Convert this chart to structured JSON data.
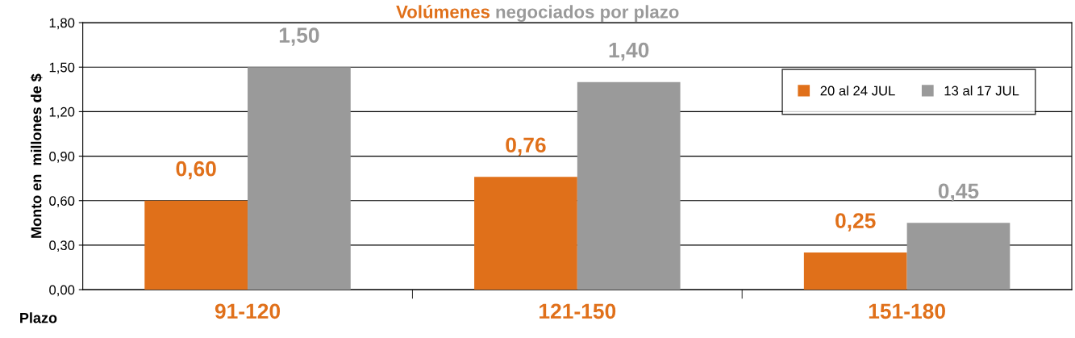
{
  "chart_data": {
    "type": "bar",
    "title": "Volúmenes negociados por plazo",
    "xlabel": "Plazo",
    "ylabel": "Monto en  millones de $",
    "categories": [
      "91-120",
      "121-150",
      "151-180"
    ],
    "series": [
      {
        "name": "20 al 24 JUL",
        "color": "#e0701a",
        "values": [
          0.6,
          0.76,
          0.25
        ],
        "value_labels": [
          "0,60",
          "0,76",
          "0,25"
        ]
      },
      {
        "name": "13 al 17 JUL",
        "color": "#9a9a9a",
        "values": [
          1.5,
          1.4,
          0.45
        ],
        "value_labels": [
          "1,50",
          "1,40",
          "0,45"
        ]
      }
    ],
    "ylim": [
      0,
      1.8
    ],
    "yticks": [
      {
        "value": 0,
        "label": "0,00"
      },
      {
        "value": 0.3,
        "label": "0,30"
      },
      {
        "value": 0.6,
        "label": "0,60"
      },
      {
        "value": 0.9,
        "label": "0,90"
      },
      {
        "value": 1.2,
        "label": "1,20"
      },
      {
        "value": 1.5,
        "label": "1,50"
      },
      {
        "value": 1.8,
        "label": "1,80"
      }
    ],
    "grid": "y",
    "legend": "top right"
  }
}
